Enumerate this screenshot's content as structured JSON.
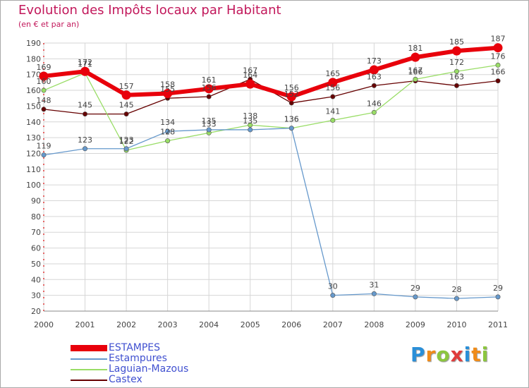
{
  "title": "Evolution des Impôts locaux par Habitant",
  "subtitle": "(en € et par an)",
  "logo": {
    "letters": [
      "P",
      "r",
      "o",
      "x",
      "i",
      "t",
      "i"
    ],
    "colors": [
      "#2a8fd8",
      "#f08c1a",
      "#8cc63f",
      "#e03c3c",
      "#2a8fd8",
      "#f08c1a",
      "#8cc63f"
    ]
  },
  "chart_data": {
    "type": "line",
    "title": "Evolution des Impôts locaux par Habitant",
    "subtitle": "(en € et par an)",
    "xlabel": "",
    "ylabel": "",
    "x": [
      "2000",
      "2001",
      "2002",
      "2003",
      "2004",
      "2005",
      "2006",
      "2007",
      "2008",
      "2009",
      "2010",
      "2011"
    ],
    "ylim": [
      20,
      190
    ],
    "yticks": [
      20,
      30,
      40,
      50,
      60,
      70,
      80,
      90,
      100,
      110,
      120,
      130,
      140,
      150,
      160,
      170,
      180,
      190
    ],
    "grid": true,
    "series": [
      {
        "name": "ESTAMPES",
        "color": "#e8000b",
        "values": [
          169,
          172,
          157,
          158,
          161,
          164,
          156,
          165,
          173,
          181,
          185,
          187
        ],
        "labels": [
          "169",
          "172",
          "157",
          "158",
          "161",
          "164",
          "156",
          "165",
          "173",
          "181",
          "185",
          "187"
        ]
      },
      {
        "name": "Estampures",
        "color": "#6699cc",
        "values": [
          119,
          123,
          123,
          134,
          135,
          135,
          136,
          30,
          31,
          29,
          28,
          29
        ],
        "labels": [
          "119",
          "123",
          "123",
          "134",
          "135",
          "135",
          "136",
          "30",
          "31",
          "29",
          "28",
          "29"
        ]
      },
      {
        "name": "Laguian-Mazous",
        "color": "#99dd66",
        "values": [
          160,
          171,
          122,
          128,
          133,
          138,
          136,
          141,
          146,
          167,
          172,
          176
        ],
        "labels": [
          "160",
          "171",
          "122",
          "128",
          "133",
          "138",
          "136",
          "141",
          "146",
          "167",
          "172",
          "176"
        ]
      },
      {
        "name": "Castex",
        "color": "#660000",
        "values": [
          148,
          145,
          145,
          155,
          156,
          167,
          152,
          156,
          163,
          166,
          163,
          166
        ],
        "labels": [
          "148",
          "145",
          "145",
          "155",
          "156",
          "167",
          "152",
          "156",
          "163",
          "166",
          "163",
          "166"
        ]
      }
    ]
  }
}
